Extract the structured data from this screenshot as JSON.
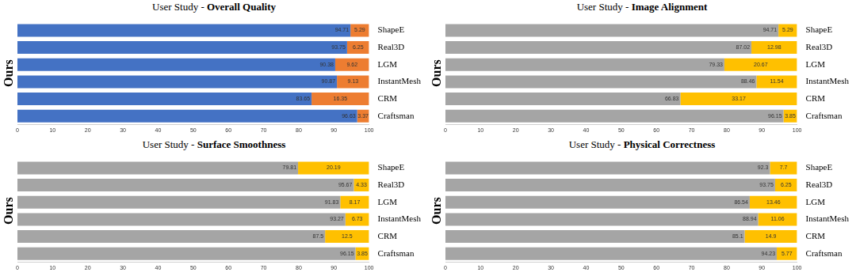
{
  "chart_data": [
    {
      "type": "bar",
      "title": "User Study - Overall Quality",
      "y_label": "Ours",
      "categories": [
        "ShapeE",
        "Real3D",
        "LGM",
        "InstantMesh",
        "CRM",
        "Craftsman"
      ],
      "series": [
        {
          "color": "#4472c4",
          "values": [
            94.71,
            93.75,
            90.38,
            90.87,
            83.65,
            96.63
          ]
        },
        {
          "color": "#ed7d31",
          "values": [
            5.29,
            6.25,
            9.62,
            9.13,
            16.35,
            3.37
          ]
        }
      ],
      "orientation": "horizontal",
      "stacked": true,
      "data_labels": true,
      "grid": false,
      "xlim": [
        0,
        100
      ],
      "xticks": [
        0,
        10,
        20,
        30,
        40,
        50,
        60,
        70,
        80,
        90,
        100
      ]
    },
    {
      "type": "bar",
      "title": "User Study - Image Alignment",
      "y_label": "Ours",
      "categories": [
        "ShapeE",
        "Real3D",
        "LGM",
        "InstantMesh",
        "CRM",
        "Craftsman"
      ],
      "series": [
        {
          "color": "#a5a5a5",
          "values": [
            94.71,
            87.02,
            79.33,
            88.46,
            66.83,
            96.15
          ]
        },
        {
          "color": "#ffc000",
          "values": [
            5.29,
            12.98,
            20.67,
            11.54,
            33.17,
            3.85
          ]
        }
      ],
      "orientation": "horizontal",
      "stacked": true,
      "data_labels": true,
      "grid": false,
      "xlim": [
        0,
        100
      ],
      "xticks": [
        0,
        10,
        20,
        30,
        40,
        50,
        60,
        70,
        80,
        90,
        100
      ]
    },
    {
      "type": "bar",
      "title": "User Study - Surface Smoothness",
      "y_label": "Ours",
      "categories": [
        "ShapeE",
        "Real3D",
        "LGM",
        "InstantMesh",
        "CRM",
        "Craftsman"
      ],
      "series": [
        {
          "color": "#a5a5a5",
          "values": [
            79.81,
            95.67,
            91.83,
            93.27,
            87.5,
            96.15
          ]
        },
        {
          "color": "#ffc000",
          "values": [
            20.19,
            4.33,
            8.17,
            6.73,
            12.5,
            3.85
          ]
        }
      ],
      "orientation": "horizontal",
      "stacked": true,
      "data_labels": true,
      "grid": false,
      "xlim": [
        0,
        100
      ],
      "xticks": [
        0,
        10,
        20,
        30,
        40,
        50,
        60,
        70,
        80,
        90,
        100
      ]
    },
    {
      "type": "bar",
      "title": "User Study - Physical Correctness",
      "y_label": "Ours",
      "categories": [
        "ShapeE",
        "Real3D",
        "LGM",
        "InstantMesh",
        "CRM",
        "Craftsman"
      ],
      "series": [
        {
          "color": "#a5a5a5",
          "values": [
            92.3,
            93.75,
            86.54,
            88.94,
            85.1,
            94.23
          ]
        },
        {
          "color": "#ffc000",
          "values": [
            7.7,
            6.25,
            13.46,
            11.06,
            14.9,
            5.77
          ]
        }
      ],
      "orientation": "horizontal",
      "stacked": true,
      "data_labels": true,
      "grid": false,
      "xlim": [
        0,
        100
      ],
      "xticks": [
        0,
        10,
        20,
        30,
        40,
        50,
        60,
        70,
        80,
        90,
        100
      ]
    }
  ]
}
